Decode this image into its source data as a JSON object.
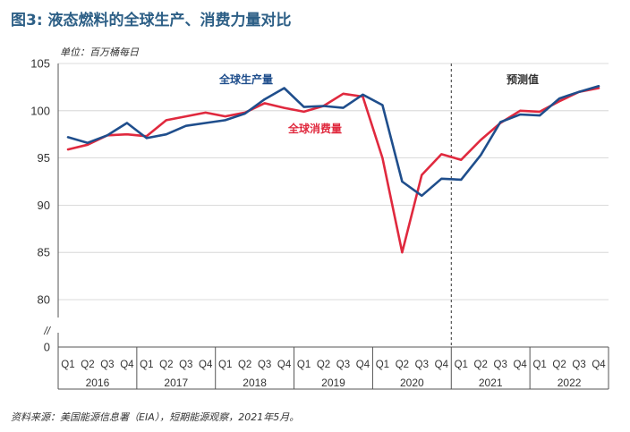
{
  "title": "图3: 液态燃料的全球生产、消费力量对比",
  "source": "资料来源：美国能源信息署（EIA），短期能源观察，2021年5月。",
  "chart_data": {
    "type": "line",
    "unit_label": "单位：百万桶每日",
    "forecast_label": "预测值",
    "forecast_start": "2021 Q1",
    "axis_break": "//",
    "years": [
      "2016",
      "2017",
      "2018",
      "2019",
      "2020",
      "2021",
      "2022"
    ],
    "quarters": [
      "Q1",
      "Q2",
      "Q3",
      "Q4"
    ],
    "yticks": [
      0,
      80,
      85,
      90,
      95,
      100,
      105
    ],
    "ylim": [
      80,
      105
    ],
    "grid": true,
    "series": [
      {
        "name": "全球生产量",
        "color": "#1f4e8c",
        "values": [
          97.2,
          96.6,
          97.4,
          98.7,
          97.1,
          97.5,
          98.4,
          98.7,
          99.0,
          99.7,
          101.2,
          102.4,
          100.4,
          100.5,
          100.3,
          101.7,
          100.6,
          92.5,
          91.0,
          92.8,
          92.7,
          95.3,
          98.8,
          99.6,
          99.5,
          101.3,
          102.0,
          102.6
        ]
      },
      {
        "name": "全球消费量",
        "color": "#e0293e",
        "values": [
          95.9,
          96.4,
          97.4,
          97.5,
          97.3,
          99.0,
          99.4,
          99.8,
          99.4,
          99.8,
          100.8,
          100.3,
          99.9,
          100.5,
          101.8,
          101.5,
          95.0,
          85.0,
          93.2,
          95.4,
          94.8,
          96.9,
          98.7,
          100.0,
          99.9,
          101.0,
          102.0,
          102.4
        ]
      }
    ]
  }
}
